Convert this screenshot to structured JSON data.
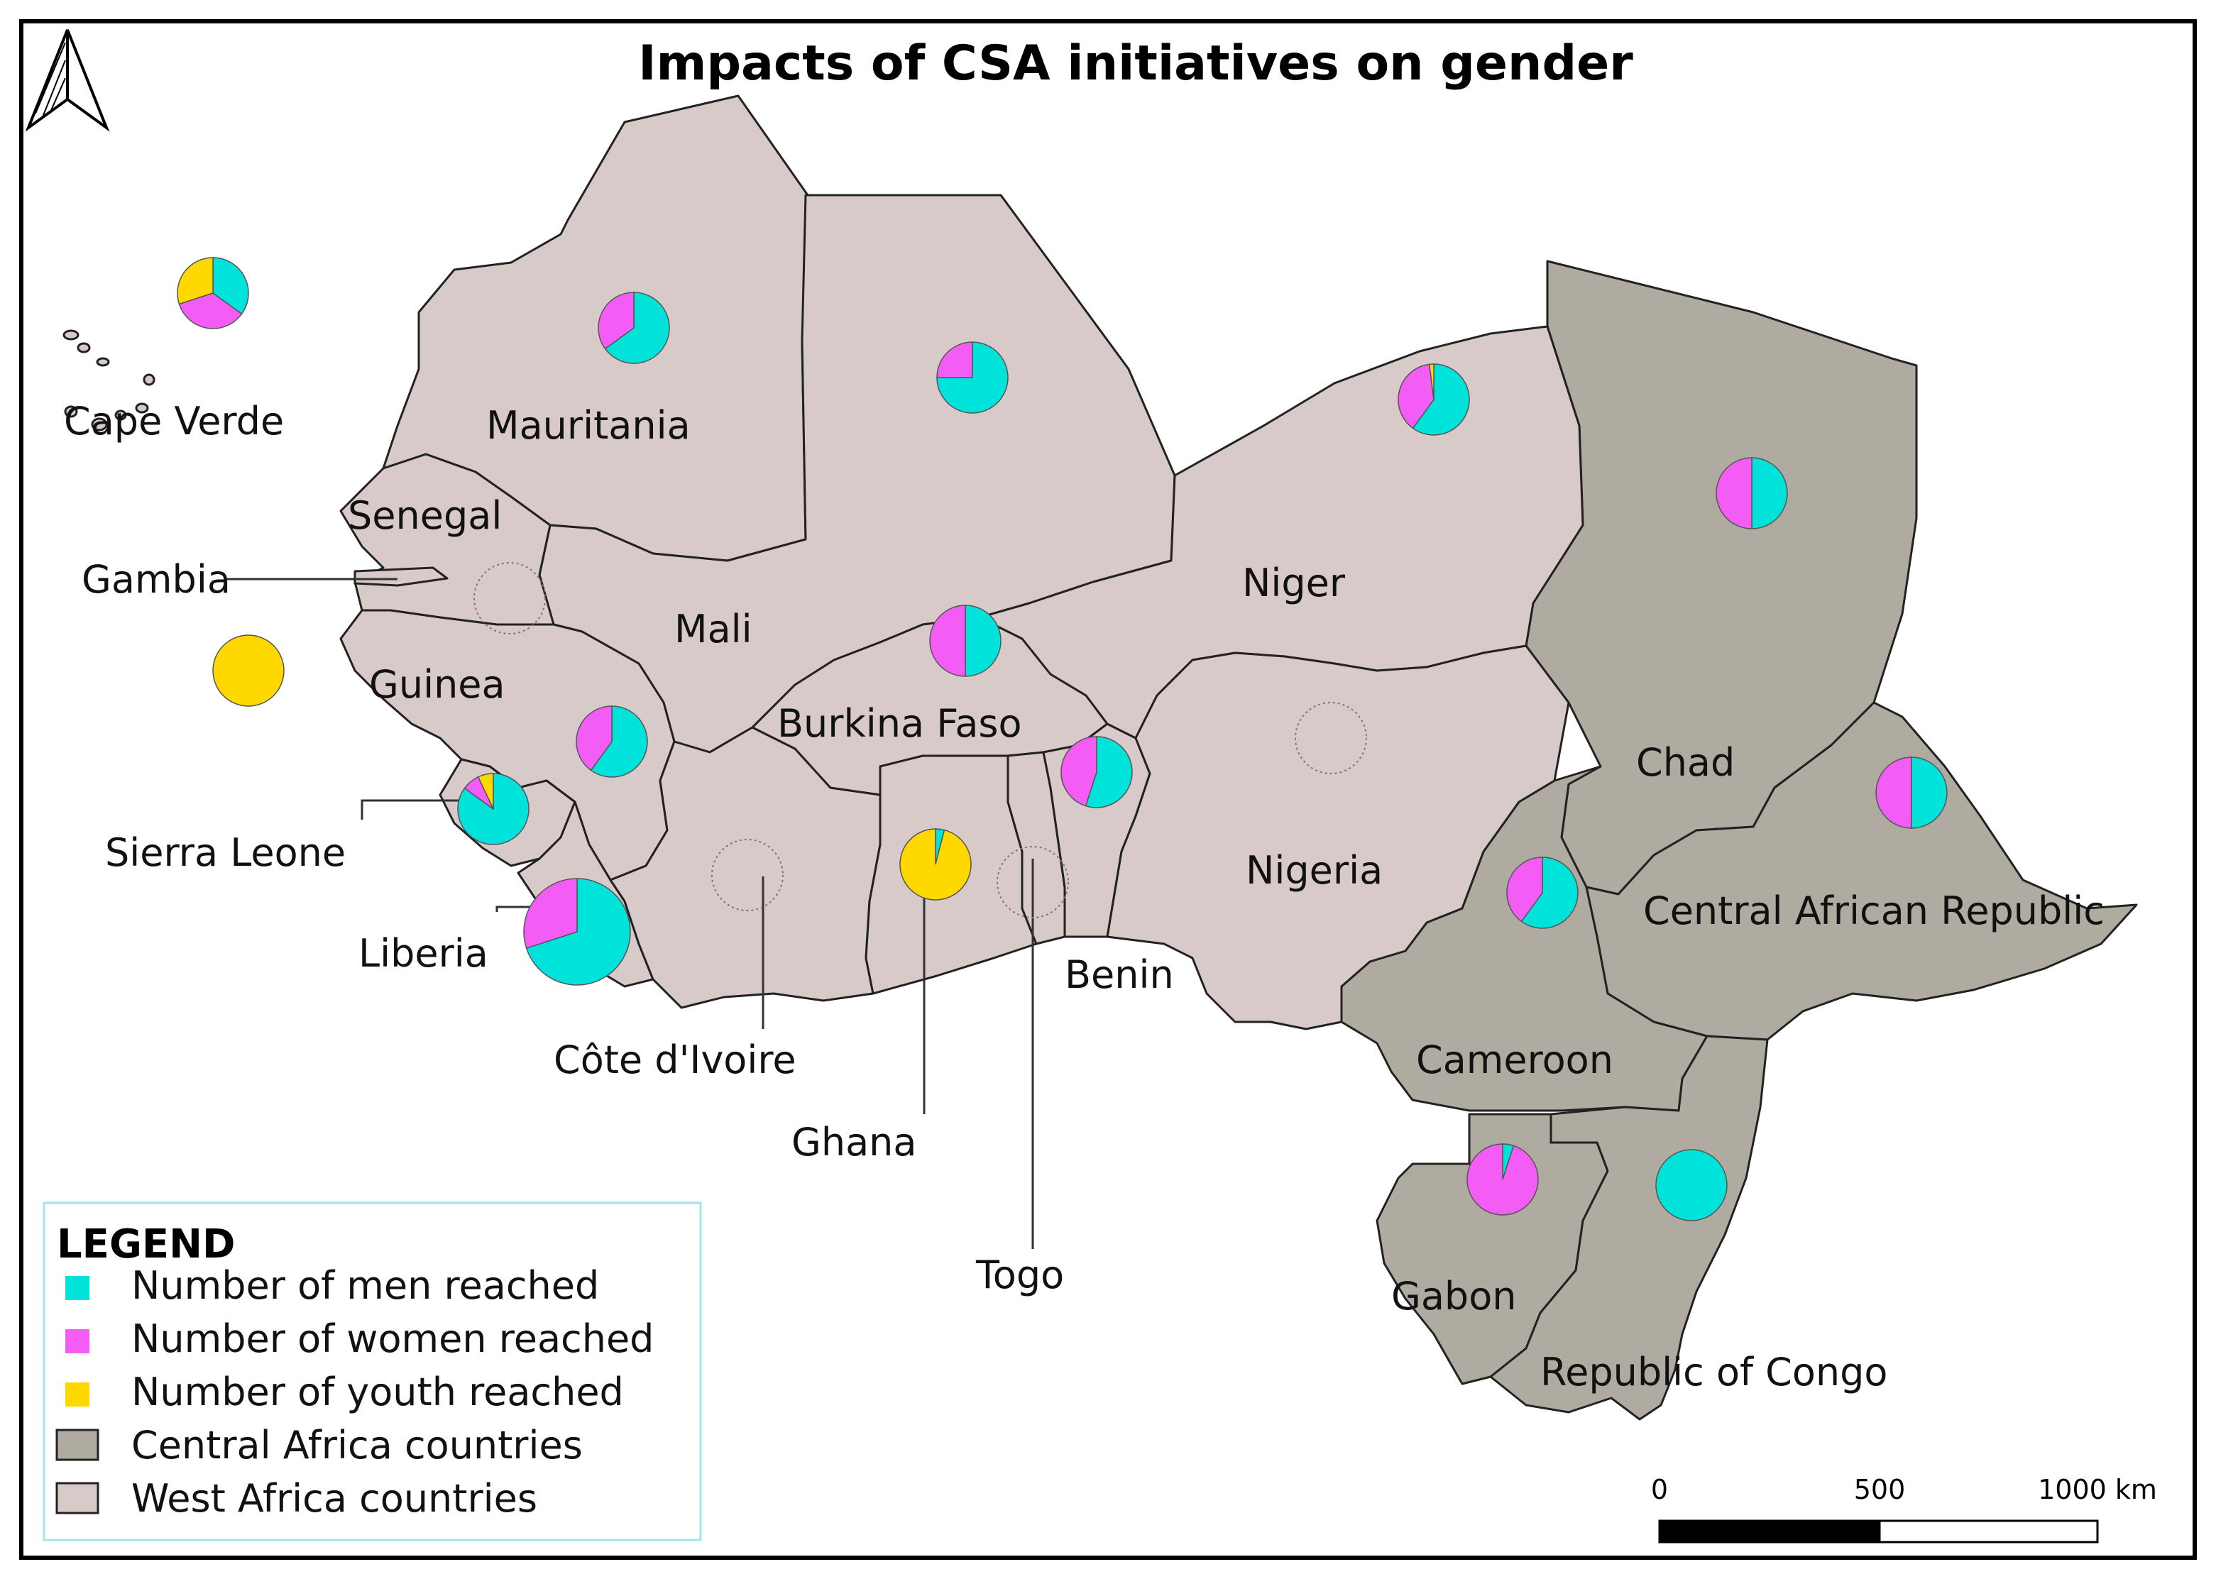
{
  "title": "Impacts of CSA initiatives on gender",
  "colors": {
    "men": "#00E3DB",
    "women": "#F45DF5",
    "youth": "#FFD800",
    "central": "#B0ABA1",
    "west": "#D9CACA"
  },
  "countries": [
    {
      "name": "Cape Verde",
      "region": "west"
    },
    {
      "name": "Mauritania",
      "region": "west"
    },
    {
      "name": "Senegal",
      "region": "west"
    },
    {
      "name": "Gambia",
      "region": "west"
    },
    {
      "name": "Mali",
      "region": "west"
    },
    {
      "name": "Niger",
      "region": "west"
    },
    {
      "name": "Guinea",
      "region": "west"
    },
    {
      "name": "Burkina Faso",
      "region": "west"
    },
    {
      "name": "Sierra Leone",
      "region": "west"
    },
    {
      "name": "Liberia",
      "region": "west"
    },
    {
      "name": "Côte d'Ivoire",
      "region": "west"
    },
    {
      "name": "Ghana",
      "region": "west"
    },
    {
      "name": "Togo",
      "region": "west"
    },
    {
      "name": "Benin",
      "region": "west"
    },
    {
      "name": "Nigeria",
      "region": "west"
    },
    {
      "name": "Chad",
      "region": "central"
    },
    {
      "name": "Central African Republic",
      "region": "central"
    },
    {
      "name": "Cameroon",
      "region": "central"
    },
    {
      "name": "Gabon",
      "region": "central"
    },
    {
      "name": "Republic of Congo",
      "region": "central"
    }
  ],
  "pies": [
    {
      "country": "Cape Verde",
      "men": 35,
      "women": 35,
      "youth": 30
    },
    {
      "country": "Mauritania",
      "men": 65,
      "women": 35,
      "youth": 0
    },
    {
      "country": "Mali",
      "men": 75,
      "women": 25,
      "youth": 0
    },
    {
      "country": "Niger",
      "men": 60,
      "women": 38,
      "youth": 2
    },
    {
      "country": "Chad",
      "men": 50,
      "women": 50,
      "youth": 0
    },
    {
      "country": "Burkina Faso",
      "men": 50,
      "women": 50,
      "youth": 0
    },
    {
      "country": "Guinea",
      "men": 60,
      "women": 40,
      "youth": 0
    },
    {
      "country": "Sierra Leone",
      "men": 85,
      "women": 8,
      "youth": 7
    },
    {
      "country": "Liberia",
      "men": 70,
      "women": 30,
      "youth": 0
    },
    {
      "country": "Gambia",
      "men": 0,
      "women": 0,
      "youth": 100
    },
    {
      "country": "Ghana",
      "men": 4,
      "women": 0,
      "youth": 96
    },
    {
      "country": "Benin",
      "men": 55,
      "women": 45,
      "youth": 0
    },
    {
      "country": "Central African Republic",
      "men": 50,
      "women": 50,
      "youth": 0
    },
    {
      "country": "Cameroon",
      "men": 60,
      "women": 40,
      "youth": 0
    },
    {
      "country": "Gabon",
      "men": 5,
      "women": 95,
      "youth": 0
    },
    {
      "country": "Republic of Congo",
      "men": 100,
      "women": 0,
      "youth": 0
    }
  ],
  "no_data": [
    "Senegal",
    "Côte d'Ivoire",
    "Togo",
    "Nigeria"
  ],
  "legend": {
    "title": "LEGEND",
    "items": [
      {
        "label": "Number of men reached",
        "color": "#00E3DB"
      },
      {
        "label": "Number of women reached",
        "color": "#F45DF5"
      },
      {
        "label": "Number of youth reached",
        "color": "#FFD800"
      },
      {
        "label": "Central Africa countries",
        "color": "#B0ABA1"
      },
      {
        "label": "West Africa countries",
        "color": "#D9CACA"
      }
    ]
  },
  "scalebar": {
    "labels": [
      "0",
      "500",
      "1000 km"
    ]
  },
  "north_arrow": "north-arrow-icon"
}
